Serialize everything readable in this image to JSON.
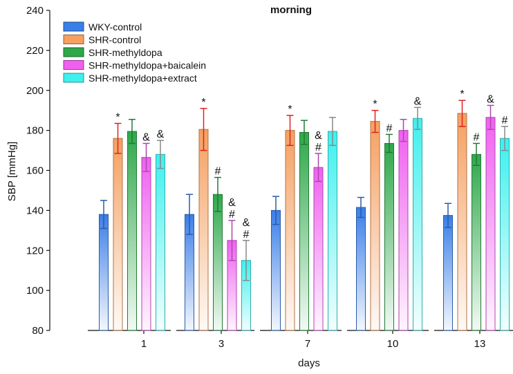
{
  "chart_data": {
    "type": "bar",
    "title": "morning",
    "xlabel": "days",
    "ylabel": "SBP [mmHg]",
    "ylim": [
      80,
      240
    ],
    "yticks": [
      80,
      100,
      120,
      140,
      160,
      180,
      200,
      220,
      240
    ],
    "categories": [
      "1",
      "3",
      "7",
      "10",
      "13"
    ],
    "grid": false,
    "legend_position": "top-left",
    "series": [
      {
        "name": "WKY-control",
        "color": "#3a7ee8",
        "values": [
          138,
          138,
          140,
          141.5,
          137.5
        ],
        "errors": [
          7,
          10,
          7,
          5,
          6
        ],
        "annotations": [
          "",
          "",
          "",
          "",
          ""
        ]
      },
      {
        "name": "SHR-control",
        "color": "#f5a060",
        "values": [
          176,
          180.5,
          180,
          184.5,
          188.5
        ],
        "errors": [
          7.5,
          10.5,
          7.5,
          5.5,
          6.5
        ],
        "annotations": [
          "*",
          "*",
          "*",
          "*",
          "*"
        ]
      },
      {
        "name": "SHR-methyldopa",
        "color": "#2ea84a",
        "values": [
          179.5,
          148,
          179,
          173.5,
          168
        ],
        "errors": [
          6,
          8.5,
          6,
          4.5,
          5.5
        ],
        "annotations": [
          "",
          "#",
          "",
          "#",
          "#"
        ]
      },
      {
        "name": "SHR-methyldopa+baicalein",
        "color": "#f060f0",
        "values": [
          166.5,
          125,
          161.5,
          180,
          186.5
        ],
        "errors": [
          7,
          10,
          7,
          5.5,
          6
        ],
        "annotations": [
          "&",
          "&\n#",
          "&\n#",
          "",
          "&"
        ]
      },
      {
        "name": "SHR-methyldopa+extract",
        "color": "#3ef0ee",
        "values": [
          168,
          115,
          179.5,
          186,
          176
        ],
        "errors": [
          7,
          10,
          7,
          5.5,
          6
        ],
        "annotations": [
          "&",
          "&\n#",
          "",
          "&",
          "#"
        ]
      }
    ]
  }
}
